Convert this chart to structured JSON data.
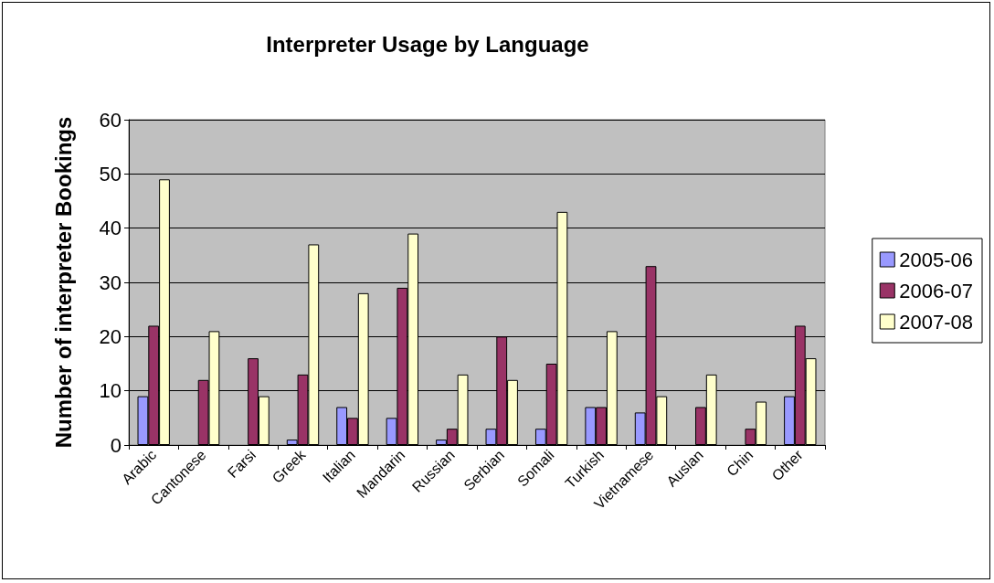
{
  "chart_data": {
    "type": "bar",
    "title": "Interpreter Usage by Language",
    "ylabel": "Number of interpreter Bookings",
    "categories": [
      "Arabic",
      "Cantonese",
      "Farsi",
      "Greek",
      "Italian",
      "Mandarin",
      "Russian",
      "Serbian",
      "Somali",
      "Turkish",
      "Vietnamese",
      "Auslan",
      "Chin",
      "Other"
    ],
    "series": [
      {
        "name": "2005-06",
        "color": "#9999ff",
        "values": [
          9,
          null,
          null,
          1,
          7,
          5,
          1,
          3,
          3,
          7,
          6,
          null,
          null,
          9
        ]
      },
      {
        "name": "2006-07",
        "color": "#993366",
        "values": [
          22,
          12,
          16,
          13,
          5,
          29,
          3,
          20,
          15,
          7,
          33,
          7,
          3,
          22
        ]
      },
      {
        "name": "2007-08",
        "color": "#ffffcc",
        "values": [
          49,
          21,
          9,
          37,
          28,
          39,
          13,
          12,
          43,
          21,
          9,
          13,
          8,
          16
        ]
      }
    ],
    "ylim": [
      0,
      60
    ],
    "yticks": [
      0,
      10,
      20,
      30,
      40,
      50,
      60
    ],
    "grid": "y",
    "legend": "right"
  }
}
